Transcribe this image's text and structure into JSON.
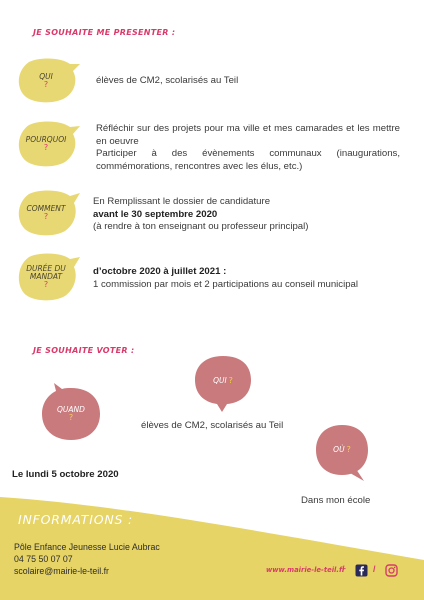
{
  "present": {
    "heading": "Je souhaite me presenter :",
    "items": [
      {
        "label": "Qui",
        "mark": "?",
        "lines": [
          "élèves de CM2, scolarisés au Teil"
        ]
      },
      {
        "label": "Pourquoi",
        "mark": "?",
        "lines": [
          "Réfléchir sur des projets pour ma ville et mes camarades et les mettre en oeuvre",
          "Participer à des évènements communaux (inaugurations, commémorations, rencontres avec les élus, etc.)"
        ]
      },
      {
        "label": "Comment",
        "mark": "?",
        "lines": [
          "En Remplissant le dossier de candidature",
          "avant le 30 septembre 2020",
          "(à rendre à ton enseignant ou professeur principal)"
        ]
      },
      {
        "label_1": "Durée du",
        "label_2": "mandat",
        "mark": "?",
        "lines": [
          "d’octobre 2020 à juillet 2021 :",
          "1 commission par mois et 2 participations au conseil municipal"
        ]
      }
    ]
  },
  "vote": {
    "heading": "Je souhaite voter :",
    "qui": {
      "label": "Qui",
      "mark": "?"
    },
    "quand": {
      "label": "Quand",
      "mark": "?"
    },
    "ou": {
      "label": "Où",
      "mark": "?"
    },
    "qui_text": "élèves de CM2, scolarisés au Teil",
    "quand_text": "Le lundi 5 octobre 2020",
    "ou_text": "Dans mon école"
  },
  "info": {
    "title": "Informations :",
    "org": "Pôle Enfance Jeunesse Lucie Aubrac",
    "phone": "04 75 50 07 07",
    "email": "scolaire@mairie-le-teil.fr",
    "website": "www.mairie-le-teil.fr",
    "separator": "/"
  },
  "colors": {
    "yellow": "#e8d873",
    "pink": "#c97a7d",
    "accent": "#d93a6b",
    "footer": "#e6d466"
  },
  "icons": {
    "facebook": "facebook-icon",
    "instagram": "instagram-icon"
  }
}
